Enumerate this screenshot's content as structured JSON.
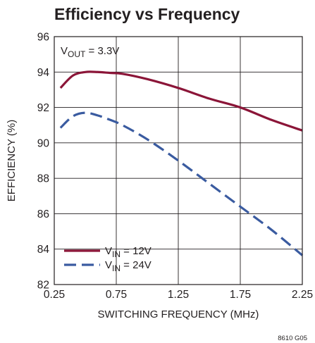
{
  "chart_data": {
    "type": "line",
    "title": "Efficiency vs Frequency",
    "xlabel": "SWITCHING FREQUENCY (MHz)",
    "ylabel": "EFFICIENCY (%)",
    "xlim": [
      0.25,
      2.25
    ],
    "ylim": [
      82,
      96
    ],
    "x_ticks": [
      0.25,
      0.75,
      1.25,
      1.75,
      2.25
    ],
    "x_tick_labels": [
      "0.25",
      "0.75",
      "1.25",
      "1.75",
      "2.25"
    ],
    "y_ticks": [
      82,
      84,
      86,
      88,
      90,
      92,
      94,
      96
    ],
    "y_tick_labels": [
      "82",
      "84",
      "86",
      "88",
      "90",
      "92",
      "94",
      "96"
    ],
    "grid": true,
    "annotation": {
      "prefix": "V",
      "sub": "OUT",
      "suffix": " = 3.3V"
    },
    "series": [
      {
        "name": "VIN = 12V",
        "label_prefix": "V",
        "label_sub": "IN",
        "label_suffix": " = 12V",
        "color": "#8b1538",
        "style": "solid",
        "x": [
          0.3,
          0.4,
          0.5,
          0.6,
          0.7,
          0.8,
          1.0,
          1.25,
          1.5,
          1.75,
          2.0,
          2.25
        ],
        "y": [
          93.1,
          93.8,
          94.0,
          94.0,
          93.95,
          93.9,
          93.6,
          93.1,
          92.5,
          92.0,
          91.3,
          90.7
        ]
      },
      {
        "name": "VIN = 24V",
        "label_prefix": "V",
        "label_sub": "IN",
        "label_suffix": " = 24V",
        "color": "#3a5ba0",
        "style": "dashed",
        "x": [
          0.3,
          0.4,
          0.5,
          0.6,
          0.7,
          0.8,
          1.0,
          1.25,
          1.5,
          1.75,
          2.0,
          2.25
        ],
        "y": [
          90.85,
          91.5,
          91.7,
          91.55,
          91.3,
          91.0,
          90.2,
          89.0,
          87.7,
          86.4,
          85.1,
          83.65
        ]
      }
    ]
  },
  "figure_code": "8610 G05"
}
